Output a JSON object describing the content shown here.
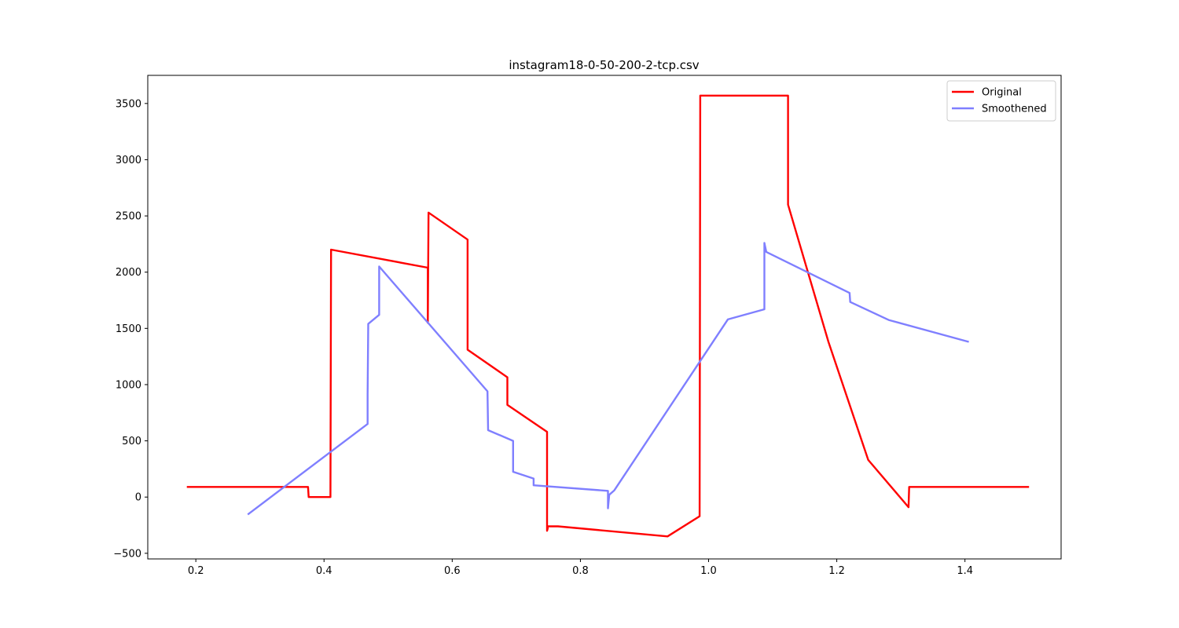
{
  "chart_data": {
    "type": "line",
    "title": "instagram18-0-50-200-2-tcp.csv",
    "xlabel": "",
    "ylabel": "",
    "xlim": [
      0.125,
      1.55
    ],
    "ylim": [
      -550,
      3750
    ],
    "xticks": [
      0.2,
      0.4,
      0.6,
      0.8,
      1.0,
      1.2,
      1.4
    ],
    "xtick_labels": [
      "0.2",
      "0.4",
      "0.6",
      "0.8",
      "1.0",
      "1.2",
      "1.4"
    ],
    "yticks": [
      -500,
      0,
      500,
      1000,
      1500,
      2000,
      2500,
      3000,
      3500
    ],
    "ytick_labels": [
      "−500",
      "0",
      "500",
      "1000",
      "1500",
      "2000",
      "2500",
      "3000",
      "3500"
    ],
    "grid": false,
    "legend_position": "top-right",
    "series": [
      {
        "name": "Original",
        "color": "#ff0000",
        "linewidth": 2.4,
        "opacity": 1,
        "x": [
          0.186,
          0.375,
          0.376,
          0.41,
          0.411,
          0.562,
          0.562,
          0.563,
          0.624,
          0.624,
          0.686,
          0.686,
          0.748,
          0.748,
          0.749,
          0.749,
          0.765,
          0.936,
          0.986,
          0.987,
          1.124,
          1.124,
          1.187,
          1.249,
          1.312,
          1.313,
          1.5
        ],
        "y": [
          90,
          90,
          0,
          0,
          2200,
          2040,
          1550,
          2530,
          2290,
          1310,
          1065,
          820,
          580,
          -300,
          -280,
          -260,
          -260,
          -350,
          -170,
          3570,
          3570,
          2600,
          1380,
          330,
          -90,
          90,
          90
        ]
      },
      {
        "name": "Smoothened",
        "color": "#7f7fff",
        "linewidth": 2.4,
        "opacity": 1,
        "x": [
          0.281,
          0.468,
          0.468,
          0.469,
          0.486,
          0.486,
          0.655,
          0.656,
          0.695,
          0.695,
          0.727,
          0.727,
          0.843,
          0.843,
          0.845,
          0.853,
          1.03,
          1.087,
          1.087,
          1.09,
          1.22,
          1.221,
          1.281,
          1.406
        ],
        "y": [
          -155,
          650,
          910,
          1540,
          1620,
          2050,
          940,
          595,
          500,
          225,
          165,
          105,
          55,
          -100,
          20,
          60,
          1580,
          1670,
          2260,
          2180,
          1815,
          1735,
          1575,
          1380
        ]
      }
    ]
  }
}
